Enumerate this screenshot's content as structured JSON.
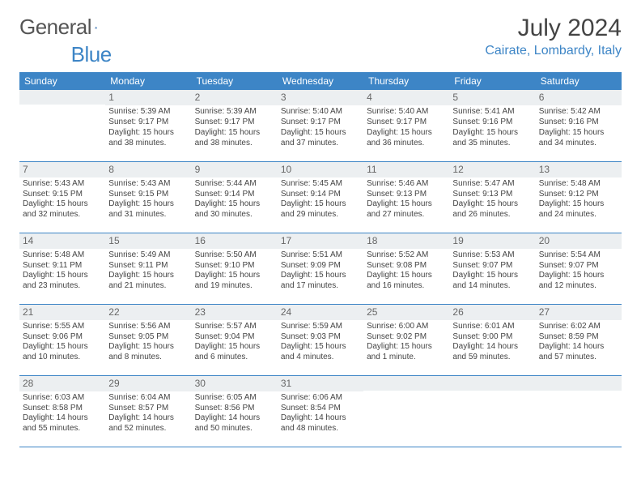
{
  "logo": {
    "word1": "General",
    "word2": "Blue"
  },
  "title": "July 2024",
  "location": "Cairate, Lombardy, Italy",
  "weekdays": [
    "Sunday",
    "Monday",
    "Tuesday",
    "Wednesday",
    "Thursday",
    "Friday",
    "Saturday"
  ],
  "colors": {
    "header_bg": "#3d85c6",
    "header_text": "#ffffff",
    "daynum_bg": "#eceff1",
    "border": "#3d85c6",
    "logo_gray": "#555555",
    "logo_blue": "#3d85c6",
    "body_text": "#444444"
  },
  "fontsizes": {
    "month_title_pt": 22,
    "location_pt": 12,
    "weekday_pt": 9,
    "daynum_pt": 9,
    "cell_pt": 7.5
  },
  "weeks": [
    [
      null,
      {
        "n": "1",
        "sunrise": "Sunrise: 5:39 AM",
        "sunset": "Sunset: 9:17 PM",
        "daylight": "Daylight: 15 hours and 38 minutes."
      },
      {
        "n": "2",
        "sunrise": "Sunrise: 5:39 AM",
        "sunset": "Sunset: 9:17 PM",
        "daylight": "Daylight: 15 hours and 38 minutes."
      },
      {
        "n": "3",
        "sunrise": "Sunrise: 5:40 AM",
        "sunset": "Sunset: 9:17 PM",
        "daylight": "Daylight: 15 hours and 37 minutes."
      },
      {
        "n": "4",
        "sunrise": "Sunrise: 5:40 AM",
        "sunset": "Sunset: 9:17 PM",
        "daylight": "Daylight: 15 hours and 36 minutes."
      },
      {
        "n": "5",
        "sunrise": "Sunrise: 5:41 AM",
        "sunset": "Sunset: 9:16 PM",
        "daylight": "Daylight: 15 hours and 35 minutes."
      },
      {
        "n": "6",
        "sunrise": "Sunrise: 5:42 AM",
        "sunset": "Sunset: 9:16 PM",
        "daylight": "Daylight: 15 hours and 34 minutes."
      }
    ],
    [
      {
        "n": "7",
        "sunrise": "Sunrise: 5:43 AM",
        "sunset": "Sunset: 9:15 PM",
        "daylight": "Daylight: 15 hours and 32 minutes."
      },
      {
        "n": "8",
        "sunrise": "Sunrise: 5:43 AM",
        "sunset": "Sunset: 9:15 PM",
        "daylight": "Daylight: 15 hours and 31 minutes."
      },
      {
        "n": "9",
        "sunrise": "Sunrise: 5:44 AM",
        "sunset": "Sunset: 9:14 PM",
        "daylight": "Daylight: 15 hours and 30 minutes."
      },
      {
        "n": "10",
        "sunrise": "Sunrise: 5:45 AM",
        "sunset": "Sunset: 9:14 PM",
        "daylight": "Daylight: 15 hours and 29 minutes."
      },
      {
        "n": "11",
        "sunrise": "Sunrise: 5:46 AM",
        "sunset": "Sunset: 9:13 PM",
        "daylight": "Daylight: 15 hours and 27 minutes."
      },
      {
        "n": "12",
        "sunrise": "Sunrise: 5:47 AM",
        "sunset": "Sunset: 9:13 PM",
        "daylight": "Daylight: 15 hours and 26 minutes."
      },
      {
        "n": "13",
        "sunrise": "Sunrise: 5:48 AM",
        "sunset": "Sunset: 9:12 PM",
        "daylight": "Daylight: 15 hours and 24 minutes."
      }
    ],
    [
      {
        "n": "14",
        "sunrise": "Sunrise: 5:48 AM",
        "sunset": "Sunset: 9:11 PM",
        "daylight": "Daylight: 15 hours and 23 minutes."
      },
      {
        "n": "15",
        "sunrise": "Sunrise: 5:49 AM",
        "sunset": "Sunset: 9:11 PM",
        "daylight": "Daylight: 15 hours and 21 minutes."
      },
      {
        "n": "16",
        "sunrise": "Sunrise: 5:50 AM",
        "sunset": "Sunset: 9:10 PM",
        "daylight": "Daylight: 15 hours and 19 minutes."
      },
      {
        "n": "17",
        "sunrise": "Sunrise: 5:51 AM",
        "sunset": "Sunset: 9:09 PM",
        "daylight": "Daylight: 15 hours and 17 minutes."
      },
      {
        "n": "18",
        "sunrise": "Sunrise: 5:52 AM",
        "sunset": "Sunset: 9:08 PM",
        "daylight": "Daylight: 15 hours and 16 minutes."
      },
      {
        "n": "19",
        "sunrise": "Sunrise: 5:53 AM",
        "sunset": "Sunset: 9:07 PM",
        "daylight": "Daylight: 15 hours and 14 minutes."
      },
      {
        "n": "20",
        "sunrise": "Sunrise: 5:54 AM",
        "sunset": "Sunset: 9:07 PM",
        "daylight": "Daylight: 15 hours and 12 minutes."
      }
    ],
    [
      {
        "n": "21",
        "sunrise": "Sunrise: 5:55 AM",
        "sunset": "Sunset: 9:06 PM",
        "daylight": "Daylight: 15 hours and 10 minutes."
      },
      {
        "n": "22",
        "sunrise": "Sunrise: 5:56 AM",
        "sunset": "Sunset: 9:05 PM",
        "daylight": "Daylight: 15 hours and 8 minutes."
      },
      {
        "n": "23",
        "sunrise": "Sunrise: 5:57 AM",
        "sunset": "Sunset: 9:04 PM",
        "daylight": "Daylight: 15 hours and 6 minutes."
      },
      {
        "n": "24",
        "sunrise": "Sunrise: 5:59 AM",
        "sunset": "Sunset: 9:03 PM",
        "daylight": "Daylight: 15 hours and 4 minutes."
      },
      {
        "n": "25",
        "sunrise": "Sunrise: 6:00 AM",
        "sunset": "Sunset: 9:02 PM",
        "daylight": "Daylight: 15 hours and 1 minute."
      },
      {
        "n": "26",
        "sunrise": "Sunrise: 6:01 AM",
        "sunset": "Sunset: 9:00 PM",
        "daylight": "Daylight: 14 hours and 59 minutes."
      },
      {
        "n": "27",
        "sunrise": "Sunrise: 6:02 AM",
        "sunset": "Sunset: 8:59 PM",
        "daylight": "Daylight: 14 hours and 57 minutes."
      }
    ],
    [
      {
        "n": "28",
        "sunrise": "Sunrise: 6:03 AM",
        "sunset": "Sunset: 8:58 PM",
        "daylight": "Daylight: 14 hours and 55 minutes."
      },
      {
        "n": "29",
        "sunrise": "Sunrise: 6:04 AM",
        "sunset": "Sunset: 8:57 PM",
        "daylight": "Daylight: 14 hours and 52 minutes."
      },
      {
        "n": "30",
        "sunrise": "Sunrise: 6:05 AM",
        "sunset": "Sunset: 8:56 PM",
        "daylight": "Daylight: 14 hours and 50 minutes."
      },
      {
        "n": "31",
        "sunrise": "Sunrise: 6:06 AM",
        "sunset": "Sunset: 8:54 PM",
        "daylight": "Daylight: 14 hours and 48 minutes."
      },
      null,
      null,
      null
    ]
  ]
}
